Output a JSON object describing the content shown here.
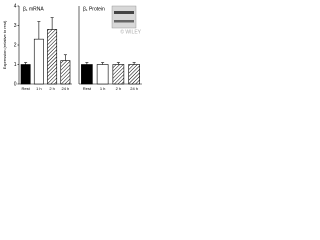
{
  "chart_data": [
    {
      "type": "bar",
      "title": "β₁ mRNA",
      "y_label": "Expression (relative to rest)",
      "categories": [
        "Rest",
        "1 h",
        "2 h",
        "24 h"
      ],
      "values": [
        1,
        2.3,
        2.8,
        1.2
      ],
      "errors": [
        0.1,
        0.9,
        0.6,
        0.3
      ],
      "colors": [
        "#000000",
        "#ffffff",
        "#ffffff",
        "#ffffff"
      ],
      "hatched": [
        false,
        false,
        true,
        true
      ],
      "ylim": [
        0,
        4
      ],
      "yticks": [
        0,
        1,
        2,
        3,
        4
      ]
    },
    {
      "type": "bar",
      "title": "β₁ Protein",
      "categories": [
        "Rest",
        "1 h",
        "2 h",
        "24 h"
      ],
      "values": [
        1,
        1,
        1,
        1
      ],
      "errors": [
        0.1,
        0.1,
        0.1,
        0.1
      ],
      "colors": [
        "#000000",
        "#ffffff",
        "#ffffff",
        "#ffffff"
      ],
      "hatched": [
        false,
        false,
        true,
        true
      ],
      "ylim": [
        0,
        4
      ],
      "watermark": "© WILEY"
    }
  ]
}
